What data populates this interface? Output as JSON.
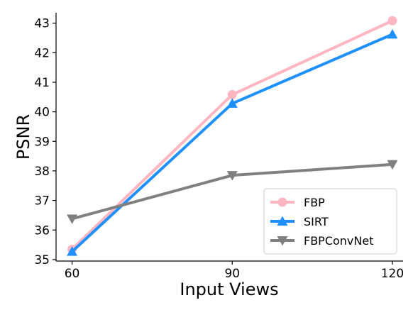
{
  "chart_data": {
    "type": "line",
    "title": "",
    "xlabel": "Input Views",
    "ylabel": "PSNR",
    "x": [
      60,
      90,
      120
    ],
    "x_tick_labels": [
      "60",
      "90",
      "120"
    ],
    "xlim": [
      57,
      122
    ],
    "ylim": [
      34.95,
      43.35
    ],
    "y_ticks": [
      35,
      36,
      37,
      38,
      39,
      40,
      41,
      42,
      43
    ],
    "y_tick_labels": [
      "35",
      "36",
      "37",
      "38",
      "39",
      "40",
      "41",
      "42",
      "43"
    ],
    "grid": false,
    "legend_position": "lower-right",
    "series": [
      {
        "name": "FBP",
        "values": [
          35.35,
          40.58,
          43.08
        ],
        "color": "#ffb6c1",
        "marker": "circle"
      },
      {
        "name": "SIRT",
        "values": [
          35.27,
          40.28,
          42.62
        ],
        "color": "#1e90ff",
        "marker": "triangle-up"
      },
      {
        "name": "FBPConvNet",
        "values": [
          36.38,
          37.85,
          38.22
        ],
        "color": "#808080",
        "marker": "triangle-down"
      }
    ]
  }
}
